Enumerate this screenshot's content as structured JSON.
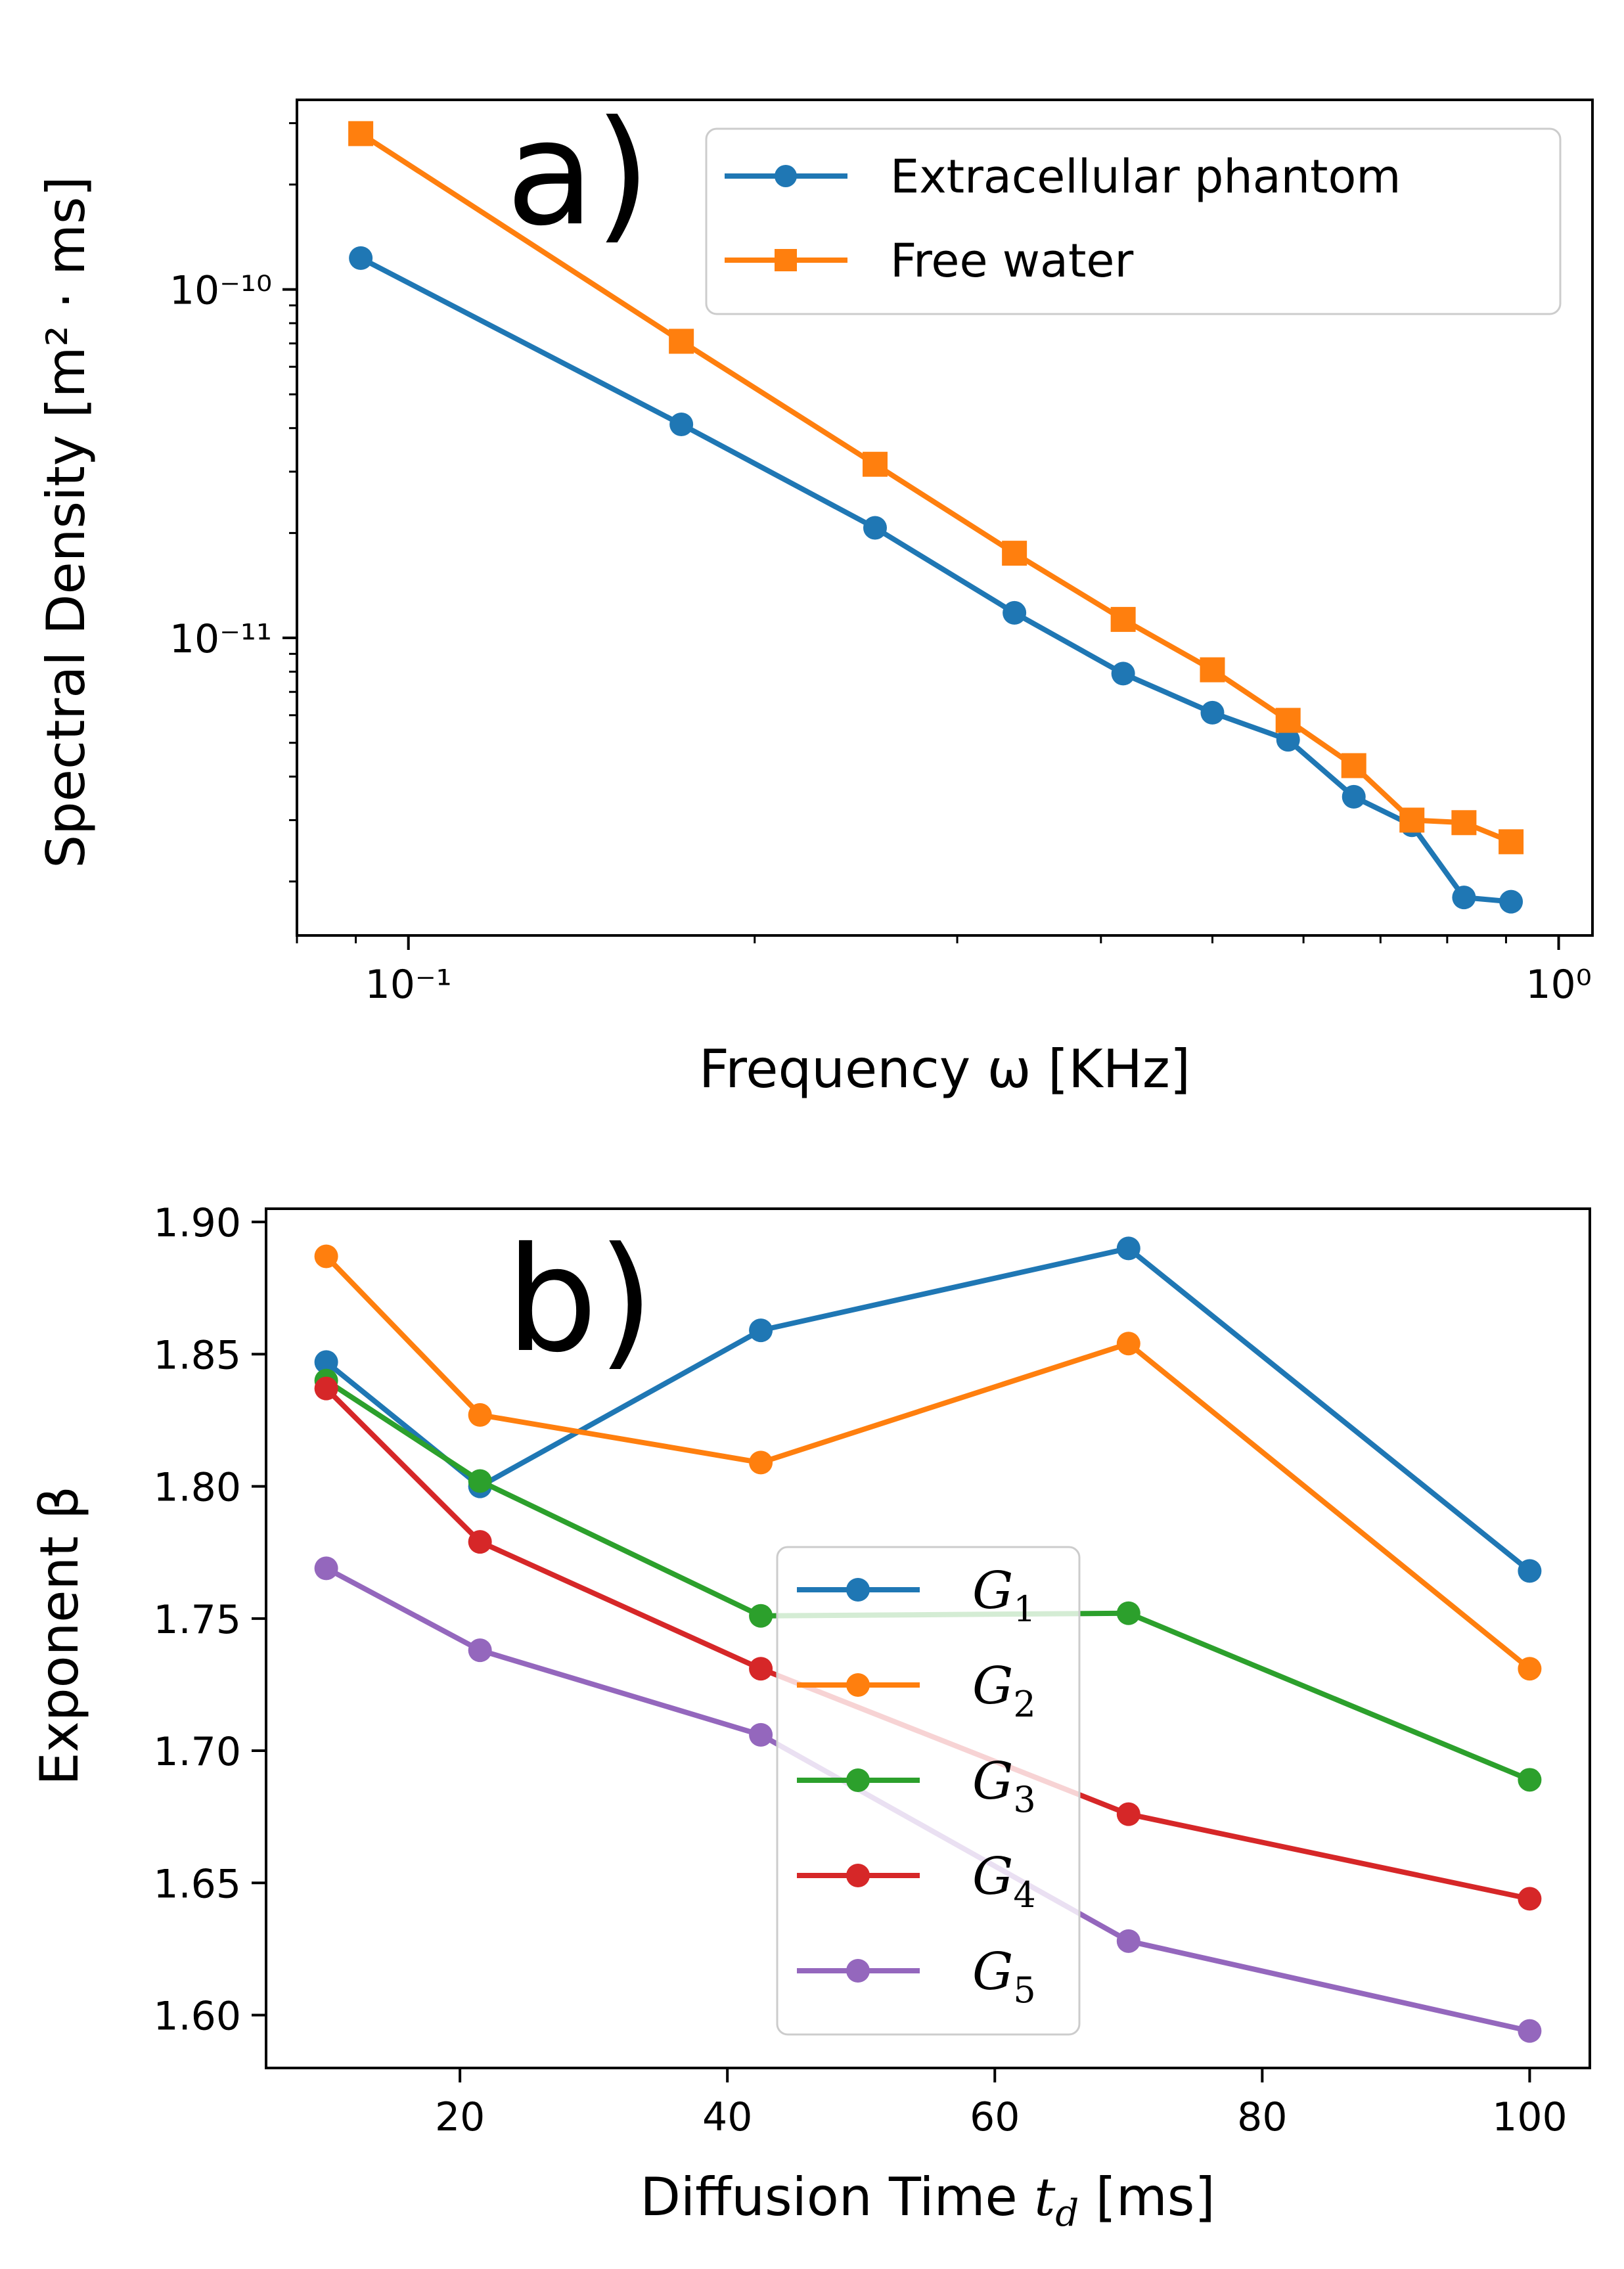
{
  "chart_data": [
    {
      "type": "line",
      "panel_label": "a)",
      "xlabel": "Frequency ω [KHz]",
      "ylabel": "Spectral Density [m² · ms]",
      "xscale": "log",
      "yscale": "log",
      "xlim": [
        0.08,
        1.07
      ],
      "ylim": [
        1.4e-12,
        3.5e-10
      ],
      "x_ticks": [
        {
          "value": 0.1,
          "label": "10⁻¹"
        },
        {
          "value": 1,
          "label": "10⁰"
        }
      ],
      "y_ticks": [
        {
          "value": 1e-11,
          "label": "10⁻¹¹"
        },
        {
          "value": 1e-10,
          "label": "10⁻¹⁰"
        }
      ],
      "legend_position": "top-right",
      "grid": false,
      "series": [
        {
          "name": "Extracellular phantom",
          "color": "#1f77b4",
          "marker": "circle",
          "x": [
            0.0909,
            0.1727,
            0.2545,
            0.3364,
            0.4182,
            0.5,
            0.5818,
            0.6636,
            0.7455,
            0.8273,
            0.9091
          ],
          "y": [
            1.23e-10,
            4.1e-11,
            2.07e-11,
            1.18e-11,
            7.9e-12,
            6.1e-12,
            5.1e-12,
            3.5e-12,
            2.9e-12,
            1.8e-12,
            1.75e-12
          ]
        },
        {
          "name": "Free water",
          "color": "#ff7f0e",
          "marker": "square",
          "x": [
            0.0909,
            0.1727,
            0.2545,
            0.3364,
            0.4182,
            0.5,
            0.5818,
            0.6636,
            0.7455,
            0.8273,
            0.9091
          ],
          "y": [
            2.8e-10,
            7.1e-11,
            3.15e-11,
            1.75e-11,
            1.13e-11,
            8.1e-12,
            5.8e-12,
            4.3e-12,
            3e-12,
            2.95e-12,
            2.6e-12
          ]
        }
      ]
    },
    {
      "type": "line",
      "panel_label": "b)",
      "xlabel": "Diffusion Time",
      "xlabel_symbol": "t",
      "xlabel_sub": "d",
      "xlabel_unit": "[ms]",
      "ylabel": "Exponent β",
      "xlim": [
        5.5,
        104.5
      ],
      "ylim": [
        1.58,
        1.905
      ],
      "x_ticks": [
        20,
        40,
        60,
        80,
        100
      ],
      "x_tick_labels": [
        "20",
        "40",
        "60",
        "80",
        "100"
      ],
      "y_ticks": [
        1.6,
        1.65,
        1.7,
        1.75,
        1.8,
        1.85,
        1.9
      ],
      "y_tick_labels": [
        "1.60",
        "1.65",
        "1.70",
        "1.75",
        "1.80",
        "1.85",
        "1.90"
      ],
      "legend_position": "lower-center",
      "grid": false,
      "x": [
        10,
        21.5,
        42.5,
        70,
        100
      ],
      "series": [
        {
          "name": "G",
          "sub": "1",
          "color": "#1f77b4",
          "values": [
            1.847,
            1.8,
            1.859,
            1.89,
            1.768
          ]
        },
        {
          "name": "G",
          "sub": "2",
          "color": "#ff7f0e",
          "values": [
            1.887,
            1.827,
            1.809,
            1.854,
            1.731
          ]
        },
        {
          "name": "G",
          "sub": "3",
          "color": "#2ca02c",
          "values": [
            1.84,
            1.802,
            1.751,
            1.752,
            1.689
          ]
        },
        {
          "name": "G",
          "sub": "4",
          "color": "#d62728",
          "values": [
            1.837,
            1.779,
            1.731,
            1.676,
            1.644
          ]
        },
        {
          "name": "G",
          "sub": "5",
          "color": "#9467bd",
          "values": [
            1.769,
            1.738,
            1.706,
            1.628,
            1.594
          ]
        }
      ]
    }
  ]
}
